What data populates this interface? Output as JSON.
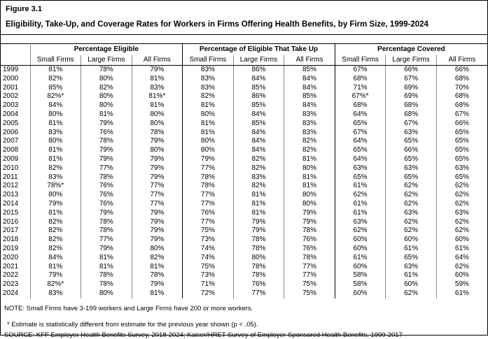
{
  "figure": {
    "label": "Figure 3.1",
    "title": "Eligibility, Take-Up, and Coverage Rates for Workers in Firms Offering Health Benefits, by Firm Size, 1999-2024"
  },
  "table": {
    "group_headers": [
      "Percentage Eligible",
      "Percentage of Eligible That Take Up",
      "Percentage Covered"
    ],
    "sub_headers": [
      "Small Firms",
      "Large Firms",
      "All Firms",
      "Small Firms",
      "Large Firms",
      "All Firms",
      "Small Firms",
      "Large Firms",
      "All Firms"
    ],
    "rows": [
      {
        "year": "1999",
        "values": [
          "81%",
          "78%",
          "79%",
          "83%",
          "86%",
          "85%",
          "67%",
          "66%",
          "66%"
        ]
      },
      {
        "year": "2000",
        "values": [
          "82%",
          "80%",
          "81%",
          "83%",
          "84%",
          "84%",
          "68%",
          "67%",
          "68%"
        ]
      },
      {
        "year": "2001",
        "values": [
          "85%",
          "82%",
          "83%",
          "83%",
          "85%",
          "84%",
          "71%",
          "69%",
          "70%"
        ]
      },
      {
        "year": "2002",
        "values": [
          "82%*",
          "80%",
          "81%*",
          "82%",
          "86%",
          "85%",
          "67%*",
          "69%",
          "68%"
        ]
      },
      {
        "year": "2003",
        "values": [
          "84%",
          "80%",
          "81%",
          "81%",
          "85%",
          "84%",
          "68%",
          "68%",
          "68%"
        ]
      },
      {
        "year": "2004",
        "values": [
          "80%",
          "81%",
          "80%",
          "80%",
          "84%",
          "83%",
          "64%",
          "68%",
          "67%"
        ]
      },
      {
        "year": "2005",
        "values": [
          "81%",
          "79%",
          "80%",
          "81%",
          "85%",
          "83%",
          "65%",
          "67%",
          "66%"
        ]
      },
      {
        "year": "2006",
        "values": [
          "83%",
          "76%",
          "78%",
          "81%",
          "84%",
          "83%",
          "67%",
          "63%",
          "65%"
        ]
      },
      {
        "year": "2007",
        "values": [
          "80%",
          "78%",
          "79%",
          "80%",
          "84%",
          "82%",
          "64%",
          "65%",
          "65%"
        ]
      },
      {
        "year": "2008",
        "values": [
          "81%",
          "79%",
          "80%",
          "80%",
          "84%",
          "82%",
          "65%",
          "66%",
          "65%"
        ]
      },
      {
        "year": "2009",
        "values": [
          "81%",
          "79%",
          "79%",
          "79%",
          "82%",
          "81%",
          "64%",
          "65%",
          "65%"
        ]
      },
      {
        "year": "2010",
        "values": [
          "82%",
          "77%",
          "79%",
          "77%",
          "82%",
          "80%",
          "63%",
          "63%",
          "63%"
        ]
      },
      {
        "year": "2011",
        "values": [
          "83%",
          "78%",
          "79%",
          "78%",
          "83%",
          "81%",
          "65%",
          "65%",
          "65%"
        ]
      },
      {
        "year": "2012",
        "values": [
          "78%*",
          "76%",
          "77%",
          "78%",
          "82%",
          "81%",
          "61%",
          "62%",
          "62%"
        ]
      },
      {
        "year": "2013",
        "values": [
          "80%",
          "76%",
          "77%",
          "77%",
          "81%",
          "80%",
          "62%",
          "62%",
          "62%"
        ]
      },
      {
        "year": "2014",
        "values": [
          "79%",
          "76%",
          "77%",
          "77%",
          "81%",
          "80%",
          "61%",
          "62%",
          "62%"
        ]
      },
      {
        "year": "2015",
        "values": [
          "81%",
          "79%",
          "79%",
          "76%",
          "81%",
          "79%",
          "61%",
          "63%",
          "63%"
        ]
      },
      {
        "year": "2016",
        "values": [
          "82%",
          "78%",
          "79%",
          "77%",
          "79%",
          "79%",
          "63%",
          "62%",
          "62%"
        ]
      },
      {
        "year": "2017",
        "values": [
          "82%",
          "78%",
          "79%",
          "75%",
          "79%",
          "78%",
          "62%",
          "62%",
          "62%"
        ]
      },
      {
        "year": "2018",
        "values": [
          "82%",
          "77%",
          "79%",
          "73%",
          "78%",
          "76%",
          "60%",
          "60%",
          "60%"
        ]
      },
      {
        "year": "2019",
        "values": [
          "82%",
          "79%",
          "80%",
          "74%",
          "78%",
          "76%",
          "60%",
          "61%",
          "61%"
        ]
      },
      {
        "year": "2020",
        "values": [
          "84%",
          "81%",
          "82%",
          "74%",
          "80%",
          "78%",
          "61%",
          "65%",
          "64%"
        ]
      },
      {
        "year": "2021",
        "values": [
          "81%",
          "81%",
          "81%",
          "75%",
          "78%",
          "77%",
          "60%",
          "63%",
          "62%"
        ]
      },
      {
        "year": "2022",
        "values": [
          "79%",
          "78%",
          "78%",
          "73%",
          "78%",
          "77%",
          "58%",
          "61%",
          "60%"
        ]
      },
      {
        "year": "2023",
        "values": [
          "82%*",
          "78%",
          "79%",
          "71%",
          "76%",
          "75%",
          "58%",
          "60%",
          "59%"
        ]
      },
      {
        "year": "2024",
        "values": [
          "83%",
          "80%",
          "81%",
          "72%",
          "77%",
          "75%",
          "60%",
          "62%",
          "61%"
        ]
      }
    ]
  },
  "notes": {
    "note": "NOTE: Small Firms have 3-199 workers and Large Firms have 200 or more workers.",
    "estimate": "* Estimate is statistically different from estimate for the previous year shown (p < .05).",
    "source": "SOURCE: KFF Employer Health Benefits Survey, 2018-2024; Kaiser/HRET Survey of Employer-Sponsored Health Benefits, 1999-2017"
  },
  "colors": {
    "outer_border": "#000000",
    "grid_line": "#888888",
    "group_boundary_line": "#000000",
    "text": "#000000",
    "background": "#ffffff"
  }
}
